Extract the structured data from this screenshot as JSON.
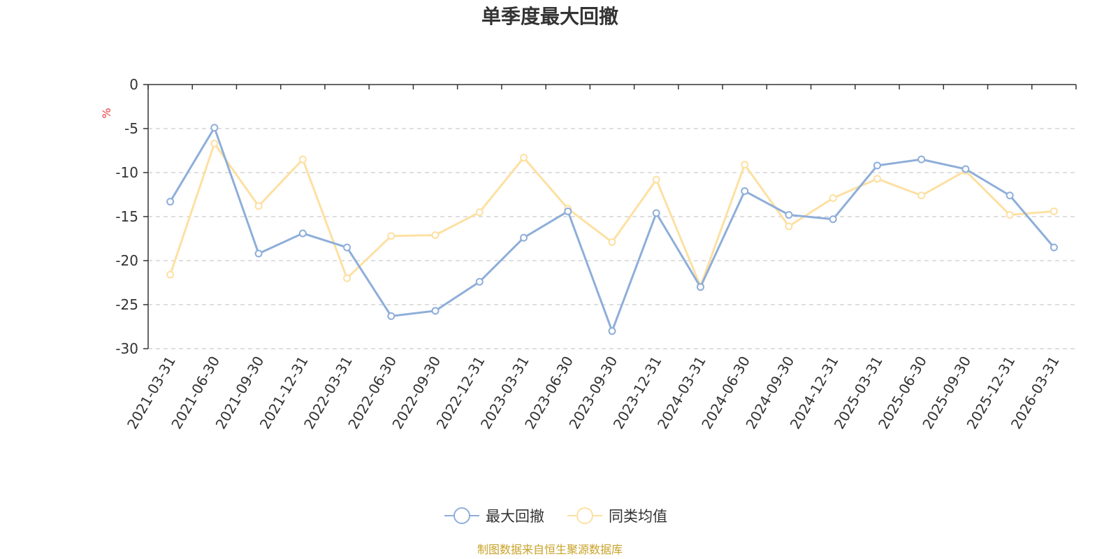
{
  "chart_data": {
    "type": "line",
    "title": "单季度最大回撤",
    "ylabel": "%",
    "ylim": [
      -30,
      0
    ],
    "yticks": [
      0,
      -5,
      -10,
      -15,
      -20,
      -25,
      -30
    ],
    "grid": true,
    "legend_position": "bottom",
    "categories": [
      "2021-03-31",
      "2021-06-30",
      "2021-09-30",
      "2021-12-31",
      "2022-03-31",
      "2022-06-30",
      "2022-09-30",
      "2022-12-31",
      "2023-03-31",
      "2023-06-30",
      "2023-09-30",
      "2023-12-31",
      "2024-03-31",
      "2024-06-30",
      "2024-09-30",
      "2024-12-31",
      "2025-03-31",
      "2025-06-30",
      "2025-09-30",
      "2025-12-31",
      "2026-03-31"
    ],
    "series": [
      {
        "name": "最大回撤",
        "color": "#8eaed9",
        "values": [
          -13.3,
          -4.9,
          -19.2,
          -16.9,
          -18.5,
          -26.3,
          -25.7,
          -22.4,
          -17.4,
          -14.4,
          -28.0,
          -14.6,
          -23.0,
          -12.1,
          -14.8,
          -15.3,
          -9.2,
          -8.5,
          -9.6,
          -12.6,
          -18.5
        ]
      },
      {
        "name": "同类均值",
        "color": "#fde0a2",
        "values": [
          -21.6,
          -6.7,
          -13.8,
          -8.5,
          -22.0,
          -17.2,
          -17.1,
          -14.5,
          -8.3,
          -14.1,
          -17.9,
          -10.8,
          -22.9,
          -9.1,
          -16.1,
          -12.9,
          -10.7,
          -12.6,
          -9.8,
          -14.8,
          -14.4
        ]
      }
    ]
  },
  "footer": {
    "source": "制图数据来自恒生聚源数据库"
  }
}
